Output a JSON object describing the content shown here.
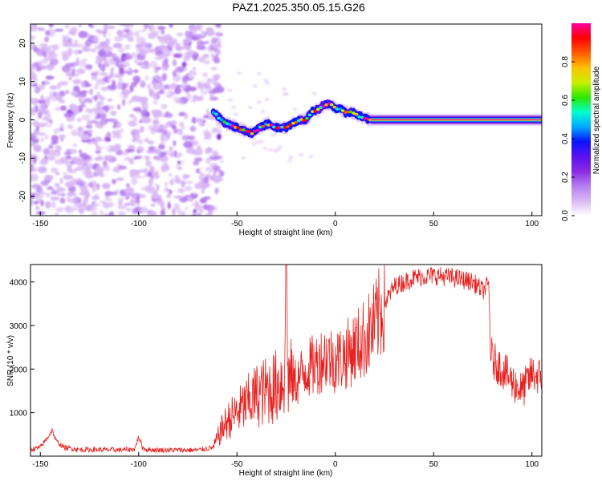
{
  "title": "PAZ1.2025.350.05.15.G26",
  "colors": {
    "snr_line": "#e8211f",
    "colormap": [
      "#ffffff",
      "#d9b8f5",
      "#b57df0",
      "#8a2be2",
      "#5a10f0",
      "#0a14ff",
      "#00a8ff",
      "#00ffd0",
      "#2ee800",
      "#c8f000",
      "#ffc000",
      "#ff5a00",
      "#ff0000",
      "#ff00a0"
    ]
  },
  "chart_data": [
    {
      "type": "heatmap",
      "name": "spectrogram",
      "xlabel": "Height of straight line (km)",
      "ylabel": "Frequency (Hz)",
      "xlim": [
        -155,
        105
      ],
      "ylim": [
        -25,
        25
      ],
      "xticks": [
        -150,
        -100,
        -50,
        0,
        50,
        100
      ],
      "xtick_labels": [
        "-150",
        "-100",
        "-50",
        "0",
        "50",
        "100"
      ],
      "yticks": [
        -20,
        -10,
        0,
        10,
        20
      ],
      "ytick_labels": [
        "-20",
        "-10",
        "0",
        "10",
        "20"
      ],
      "noise_region_x": [
        -155,
        -60
      ],
      "ridge": {
        "x": [
          -62,
          -58,
          -55,
          -50,
          -45,
          -42,
          -38,
          -35,
          -30,
          -25,
          -22,
          -18,
          -15,
          -12,
          -8,
          -5,
          -2,
          0,
          2,
          5,
          8,
          12,
          15,
          18,
          105
        ],
        "y": [
          2,
          0,
          -1,
          -2,
          -3,
          -3.5,
          -2,
          -1,
          -2,
          -2,
          -1,
          0,
          0,
          2,
          3,
          4,
          4,
          3,
          3,
          2,
          2,
          1,
          0.5,
          0,
          0
        ]
      },
      "colorbar": {
        "label": "Normalized spectral amplitude",
        "range": [
          0,
          1
        ],
        "ticks": [
          0.0,
          0.2,
          0.4,
          0.6,
          0.8
        ],
        "tick_labels": [
          "0.0",
          "0.2",
          "0.4",
          "0.6",
          "0.8"
        ]
      }
    },
    {
      "type": "line",
      "name": "snr",
      "xlabel": "Height of straight line (km)",
      "ylabel": "SNR (10 * v/v)",
      "xlim": [
        -155,
        105
      ],
      "ylim": [
        0,
        4400
      ],
      "xticks": [
        -150,
        -100,
        -50,
        0,
        50,
        100
      ],
      "xtick_labels": [
        "-150",
        "-100",
        "-50",
        "0",
        "50",
        "100"
      ],
      "yticks": [
        1000,
        2000,
        3000,
        4000
      ],
      "ytick_labels": [
        "1000",
        "2000",
        "3000",
        "4000"
      ],
      "envelope_x": [
        -155,
        -150,
        -146,
        -144,
        -142,
        -138,
        -130,
        -120,
        -110,
        -102,
        -100,
        -98,
        -96,
        -90,
        -80,
        -70,
        -62,
        -60,
        -58,
        -55,
        -50,
        -45,
        -40,
        -35,
        -30,
        -26,
        -25,
        -24,
        -20,
        -15,
        -10,
        -5,
        0,
        5,
        10,
        15,
        20,
        25,
        30,
        40,
        50,
        60,
        70,
        75,
        78,
        79,
        80,
        85,
        90,
        95,
        100,
        105
      ],
      "envelope_y": [
        150,
        200,
        450,
        600,
        350,
        200,
        150,
        150,
        140,
        160,
        450,
        200,
        150,
        140,
        140,
        140,
        200,
        400,
        600,
        800,
        1000,
        1200,
        1400,
        1500,
        1600,
        1800,
        4100,
        1800,
        1700,
        2000,
        2100,
        2300,
        2200,
        2300,
        2500,
        2700,
        3000,
        3500,
        3900,
        4100,
        4150,
        4100,
        4000,
        3800,
        3950,
        2400,
        2200,
        2000,
        1700,
        1500,
        1900,
        1800
      ]
    }
  ]
}
